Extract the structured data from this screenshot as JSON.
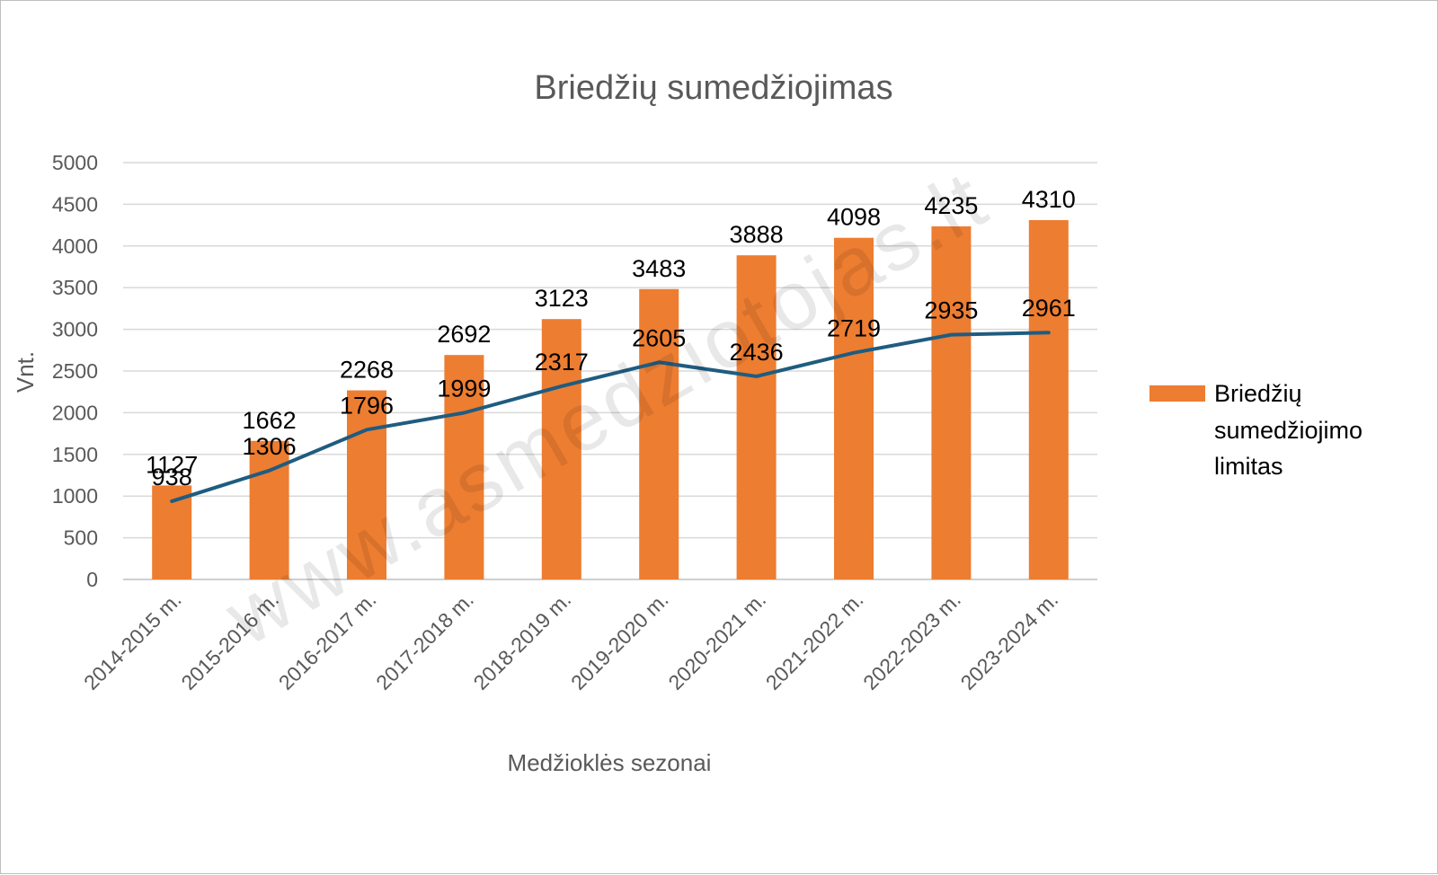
{
  "chart_data": {
    "type": "bar",
    "title": "Briedžių sumedžiojimas",
    "xlabel": "Medžioklės sezonai",
    "ylabel": "Vnt.",
    "ylim": [
      0,
      5000
    ],
    "ytick_step": 500,
    "grid": true,
    "legend_position": "right",
    "categories": [
      "2014-2015 m.",
      "2015-2016 m.",
      "2016-2017 m.",
      "2017-2018 m.",
      "2018-2019 m.",
      "2019-2020 m.",
      "2020-2021 m.",
      "2021-2022 m.",
      "2022-2023 m.",
      "2023-2024 m."
    ],
    "series": [
      {
        "name": "Briedžių sumedžiojimo limitas",
        "type": "bar",
        "color": "#ED7D31",
        "values": [
          1127,
          1662,
          2268,
          2692,
          3123,
          3483,
          3888,
          4098,
          4235,
          4310
        ]
      },
      {
        "type": "line",
        "color": "#1F5C80",
        "values": [
          938,
          1306,
          1796,
          1999,
          2317,
          2605,
          2436,
          2719,
          2935,
          2961
        ]
      }
    ],
    "legend": {
      "lines": [
        "Briedžių",
        "sumedžiojimo",
        "limitas"
      ]
    },
    "watermark": "www.asmedziotojas.lt"
  }
}
